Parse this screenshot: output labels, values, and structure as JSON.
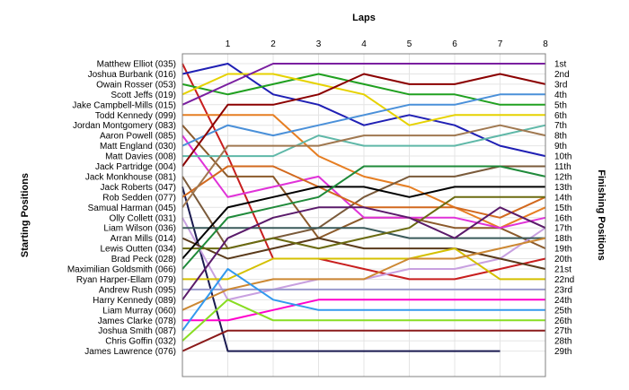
{
  "chart_data": {
    "type": "line",
    "title": "Laps",
    "ylabel_left": "Starting Positions",
    "ylabel_right": "Finishing Positions",
    "laps": [
      0,
      1,
      2,
      3,
      4,
      5,
      6,
      7,
      8
    ],
    "lap_ticks": [
      "1",
      "2",
      "3",
      "4",
      "5",
      "6",
      "7",
      "8"
    ],
    "drivers": [
      "Matthew Elliot (035)",
      "Joshua Burbank (016)",
      "Owain Rosser (053)",
      "Scott Jeffs (019)",
      "Jake Campbell-Mills (015)",
      "Todd Kennedy (099)",
      "Jordan Montgomery (083)",
      "Aaron Powell (085)",
      "Matt England (030)",
      "Matt Davies (008)",
      "Jack Partridge (004)",
      "Jack Monkhouse (081)",
      "Jack Roberts (047)",
      "Rob Sedden (077)",
      "Samual Harman (045)",
      "Olly Collett (031)",
      "Liam Wilson (036)",
      "Arran Mills (014)",
      "Lewis Outten (034)",
      "Brad Peck (028)",
      "Maximilian Goldsmith (066)",
      "Ryan Harper-Ellam (079)",
      "Andrew Rush (095)",
      "Harry Kennedy (089)",
      "Liam Murray (060)",
      "James Clarke (078)",
      "Joshua Smith (087)",
      "Chris Goffin (032)",
      "James Lawrence (076)"
    ],
    "finishing_positions": [
      "1st",
      "2nd",
      "3rd",
      "4th",
      "5th",
      "6th",
      "7th",
      "8th",
      "9th",
      "10th",
      "11th",
      "12th",
      "13th",
      "14th",
      "15th",
      "16th",
      "17th",
      "18th",
      "19th",
      "20th",
      "21st",
      "22nd",
      "23rd",
      "24th",
      "25th",
      "26th",
      "27th",
      "28th",
      "29th"
    ],
    "series": [
      {
        "driver": "Matthew Elliot (035)",
        "color": "#c81e1e",
        "positions": [
          1,
          10,
          20,
          20,
          21,
          22,
          22,
          21,
          20
        ]
      },
      {
        "driver": "Joshua Burbank (016)",
        "color": "#1f1fb4",
        "positions": [
          2,
          1,
          4,
          5,
          7,
          6,
          7,
          9,
          10
        ]
      },
      {
        "driver": "Owain Rosser (053)",
        "color": "#20a020",
        "positions": [
          3,
          4,
          3,
          2,
          3,
          4,
          4,
          5,
          5
        ]
      },
      {
        "driver": "Scott Jeffs (019)",
        "color": "#e6d200",
        "positions": [
          4,
          2,
          2,
          3,
          4,
          7,
          6,
          6,
          6
        ]
      },
      {
        "driver": "Jake Campbell-Mills (015)",
        "color": "#7a1fa0",
        "positions": [
          5,
          3,
          1,
          1,
          1,
          1,
          1,
          1,
          1
        ]
      },
      {
        "driver": "Todd Kennedy (099)",
        "color": "#e67e22",
        "positions": [
          6,
          6,
          6,
          10,
          12,
          13,
          15,
          17,
          15
        ]
      },
      {
        "driver": "Jordan Montgomery (083)",
        "color": "#8b5a2b",
        "positions": [
          7,
          12,
          12,
          18,
          16,
          16,
          17,
          17,
          19
        ]
      },
      {
        "driver": "Aaron Powell (085)",
        "color": "#e032d8",
        "positions": [
          8,
          14,
          13,
          12,
          16,
          16,
          16,
          17,
          16
        ]
      },
      {
        "driver": "Matt England (030)",
        "color": "#4a90d9",
        "positions": [
          9,
          7,
          8,
          7,
          6,
          5,
          5,
          4,
          4
        ]
      },
      {
        "driver": "Matt Davies (008)",
        "color": "#5fb8a8",
        "positions": [
          10,
          10,
          10,
          8,
          9,
          9,
          9,
          8,
          7
        ]
      },
      {
        "driver": "Jack Partridge (004)",
        "color": "#8b0000",
        "positions": [
          11,
          5,
          5,
          4,
          2,
          3,
          3,
          2,
          3
        ]
      },
      {
        "driver": "Jack Monkhouse (081)",
        "color": "#7a5a3a",
        "positions": [
          12,
          19,
          18,
          17,
          14,
          12,
          12,
          11,
          11
        ]
      },
      {
        "driver": "Jack Roberts (047)",
        "color": "#1a1a50",
        "positions": [
          13,
          29,
          29,
          29,
          29,
          29,
          29,
          29,
          null
        ]
      },
      {
        "driver": "Rob Sedden (077)",
        "color": "#d2691e",
        "positions": [
          14,
          11,
          11,
          13,
          15,
          15,
          15,
          16,
          14
        ]
      },
      {
        "driver": "Samual Harman (045)",
        "color": "#a07850",
        "positions": [
          15,
          9,
          9,
          9,
          8,
          8,
          8,
          7,
          8
        ]
      },
      {
        "driver": "Olly Collett (031)",
        "color": "#c8a0e0",
        "positions": [
          16,
          24,
          23,
          22,
          22,
          21,
          21,
          20,
          17
        ]
      },
      {
        "driver": "Liam Wilson (036)",
        "color": "#3a5a5a",
        "positions": [
          17,
          17,
          17,
          17,
          17,
          18,
          18,
          18,
          18
        ]
      },
      {
        "driver": "Arran Mills (014)",
        "color": "#5a3a1a",
        "positions": [
          18,
          20,
          19,
          18,
          19,
          19,
          19,
          20,
          21
        ]
      },
      {
        "driver": "Lewis Outten (034)",
        "color": "#6a6a10",
        "positions": [
          19,
          19,
          18,
          19,
          18,
          17,
          14,
          14,
          14
        ]
      },
      {
        "driver": "Brad Peck (028)",
        "color": "#000000",
        "positions": [
          20,
          15,
          14,
          13,
          13,
          14,
          13,
          13,
          13
        ]
      },
      {
        "driver": "Maximilian Goldsmith (066)",
        "color": "#1f8a3a",
        "positions": [
          21,
          16,
          15,
          14,
          11,
          11,
          11,
          11,
          12
        ]
      },
      {
        "driver": "Ryan Harper-Ellam (079)",
        "color": "#d4c000",
        "positions": [
          22,
          22,
          20,
          20,
          20,
          20,
          19,
          22,
          22
        ]
      },
      {
        "driver": "Andrew Rush (095)",
        "color": "#9a9acc",
        "positions": [
          23,
          23,
          23,
          23,
          23,
          23,
          23,
          23,
          23
        ]
      },
      {
        "driver": "Harry Kennedy (089)",
        "color": "#5a1a6a",
        "positions": [
          24,
          18,
          16,
          15,
          15,
          16,
          18,
          15,
          17
        ]
      },
      {
        "driver": "Liam Murray (060)",
        "color": "#cc8833",
        "positions": [
          25,
          23,
          22,
          22,
          22,
          20,
          20,
          19,
          18
        ]
      },
      {
        "driver": "James Clarke (078)",
        "color": "#ff00cc",
        "positions": [
          26,
          26,
          25,
          24,
          24,
          24,
          24,
          24,
          24
        ]
      },
      {
        "driver": "Joshua Smith (087)",
        "color": "#3399ee",
        "positions": [
          27,
          21,
          24,
          25,
          25,
          25,
          25,
          25,
          25
        ]
      },
      {
        "driver": "Chris Goffin (032)",
        "color": "#88dd22",
        "positions": [
          28,
          24,
          26,
          26,
          26,
          26,
          26,
          26,
          26
        ]
      },
      {
        "driver": "James Lawrence (076)",
        "color": "#8b1a1a",
        "positions": [
          29,
          27,
          27,
          27,
          27,
          27,
          27,
          27,
          27
        ]
      }
    ]
  }
}
